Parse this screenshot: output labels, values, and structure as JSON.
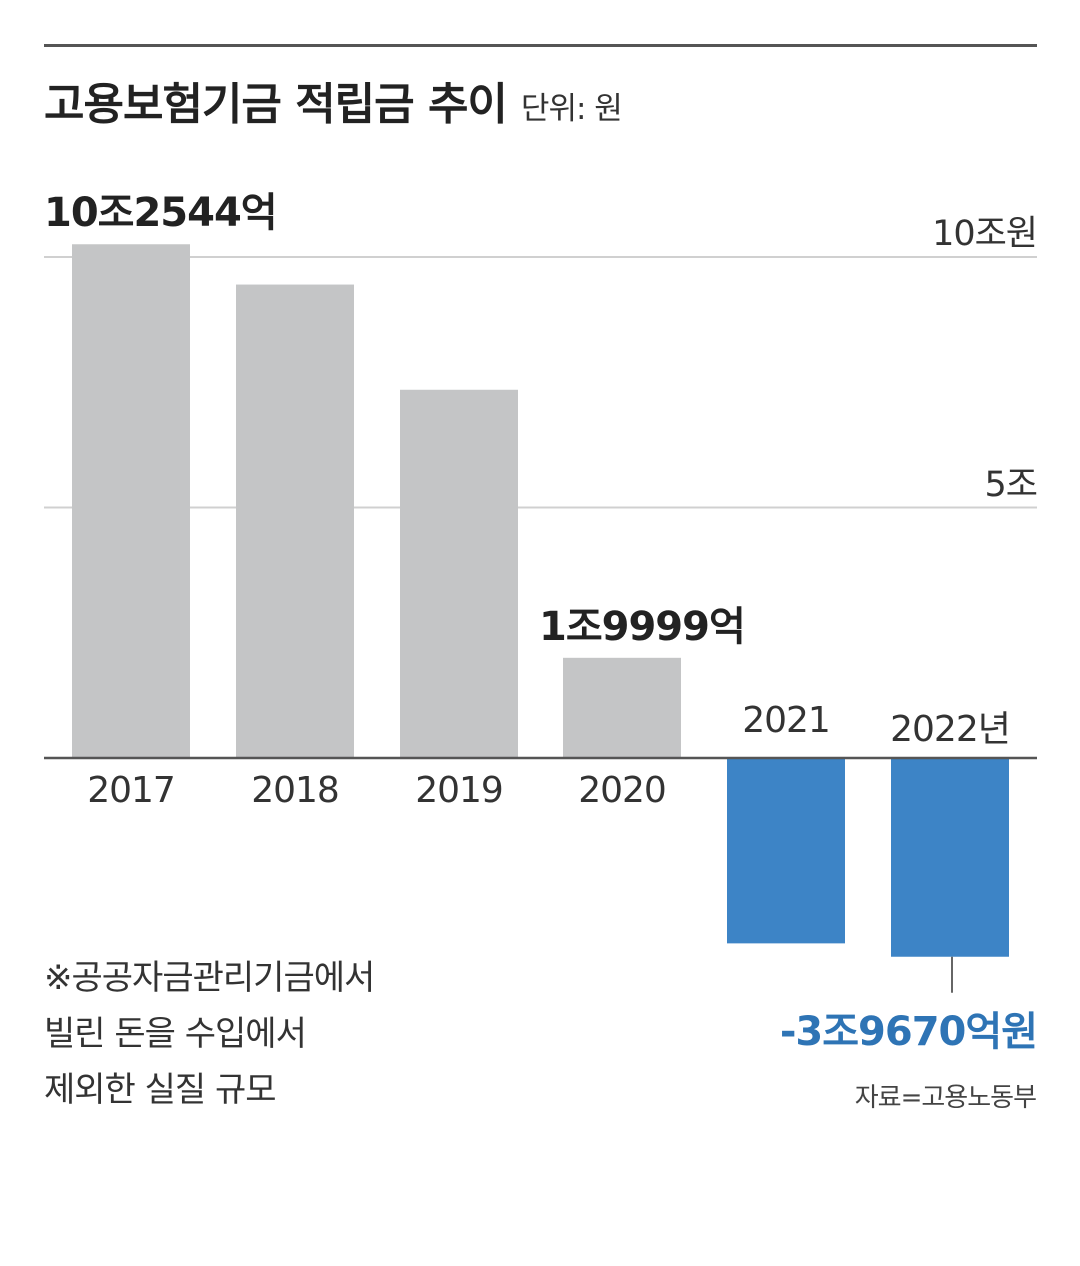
{
  "title": "고용보험기금 적립금 추이",
  "unit_label": "단위: 원",
  "note_lines": [
    "※공공자금관리기금에서",
    "빌린 돈을 수입에서",
    "제외한 실질 규모"
  ],
  "source": "자료=고용노동부",
  "colors": {
    "positive_bar": "#c4c5c6",
    "negative_bar": "#3d84c6",
    "negative_label": "#2e74b5",
    "gridline": "#d0d0d0",
    "axis": "#555555"
  },
  "chart_data": {
    "type": "bar",
    "categories": [
      "2017",
      "2018",
      "2019",
      "2020",
      "2021",
      "2022년"
    ],
    "values": [
      10.2544,
      9.45,
      7.35,
      1.9999,
      -3.7,
      -3.967
    ],
    "value_unit": "조원",
    "ylim": [
      -4.5,
      10.5
    ],
    "y_ticks": [
      {
        "value": 10,
        "label": "10조원"
      },
      {
        "value": 5,
        "label": "5조"
      }
    ],
    "grid": true,
    "data_labels": [
      {
        "index": 0,
        "text": "10조2544억"
      },
      {
        "index": 3,
        "text": "1조9999억"
      },
      {
        "index": 5,
        "text": "-3조9670억원"
      }
    ]
  }
}
